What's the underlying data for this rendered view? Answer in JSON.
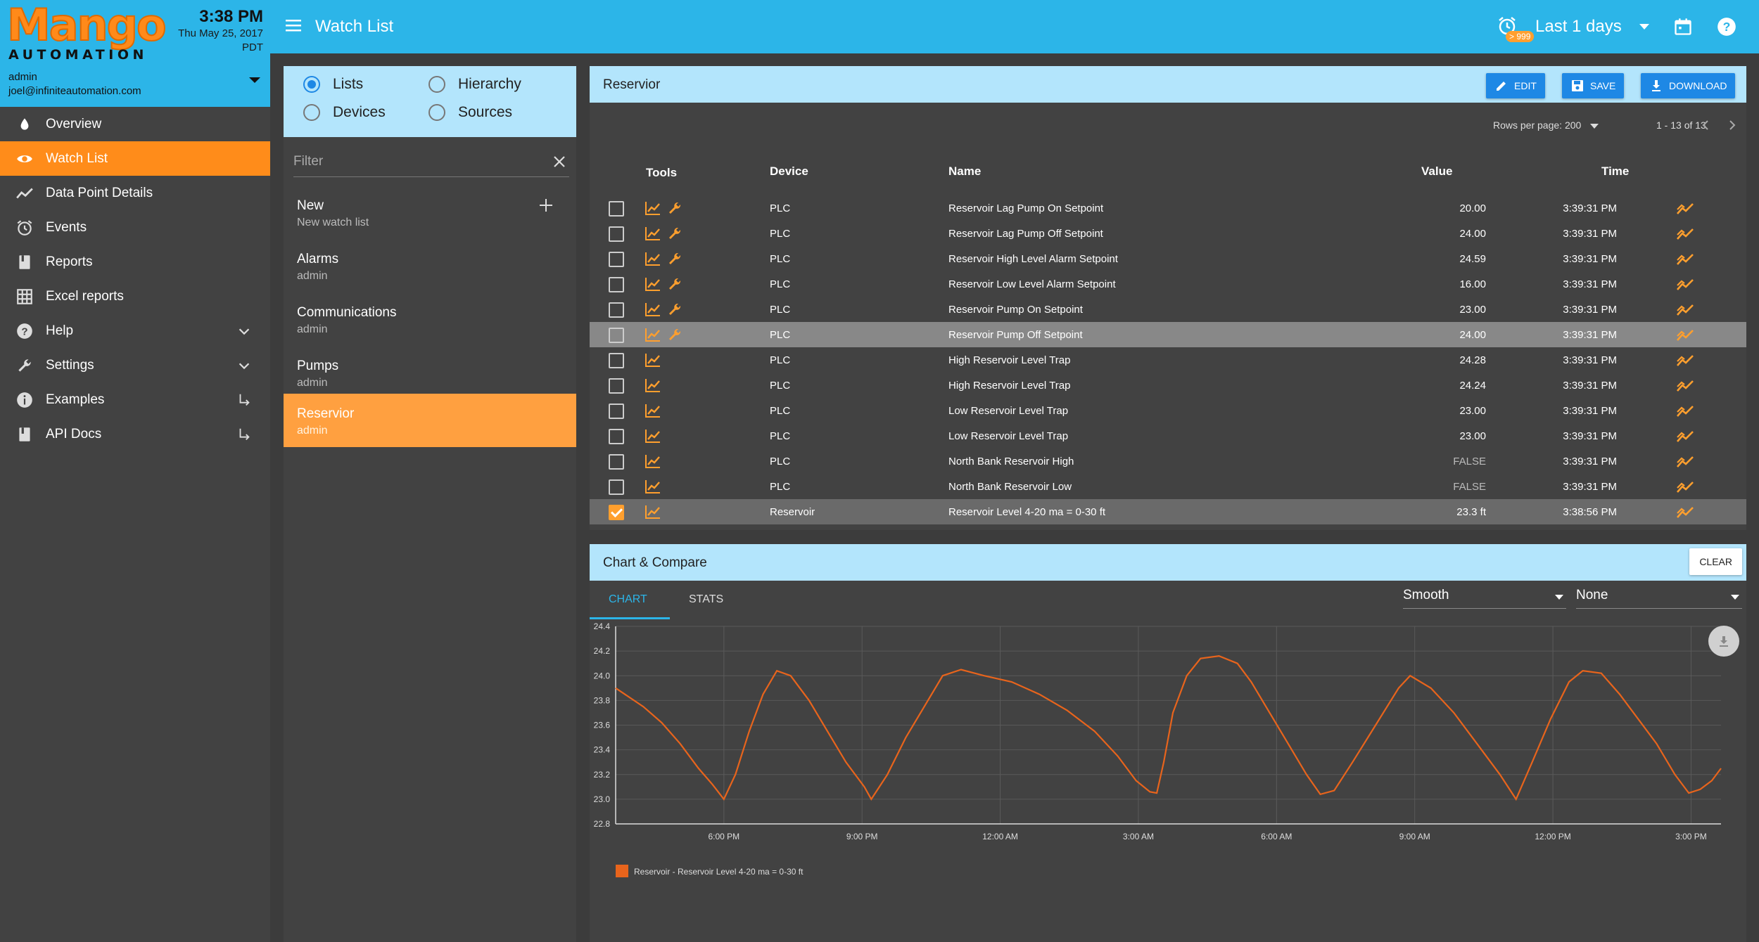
{
  "brand": {
    "name_top": "Mango",
    "name_bottom": "AUTOMATION"
  },
  "clock": {
    "time": "3:38 PM",
    "date": "Thu May 25, 2017",
    "tz": "PDT"
  },
  "user": {
    "name": "admin",
    "email": "joel@infiniteautomation.com"
  },
  "nav": [
    {
      "label": "Overview",
      "icon": "drop-icon"
    },
    {
      "label": "Watch List",
      "icon": "eye-icon",
      "active": true
    },
    {
      "label": "Data Point Details",
      "icon": "trend-icon"
    },
    {
      "label": "Events",
      "icon": "alarm-clock-icon"
    },
    {
      "label": "Reports",
      "icon": "book-icon"
    },
    {
      "label": "Excel reports",
      "icon": "grid-icon"
    },
    {
      "label": "Help",
      "icon": "help-icon",
      "trail": "chevron"
    },
    {
      "label": "Settings",
      "icon": "wrench-icon",
      "trail": "chevron"
    },
    {
      "label": "Examples",
      "icon": "info-icon",
      "trail": "arrow"
    },
    {
      "label": "API Docs",
      "icon": "book-icon",
      "trail": "arrow"
    }
  ],
  "topbar": {
    "title": "Watch List",
    "alarm_badge": "> 999",
    "range": "Last 1 days"
  },
  "lists_panel": {
    "radios": {
      "lists": "Lists",
      "hierarchy": "Hierarchy",
      "devices": "Devices",
      "sources": "Sources"
    },
    "filter_placeholder": "Filter",
    "items": [
      {
        "name": "New",
        "sub": "New watch list"
      },
      {
        "name": "Alarms",
        "sub": "admin"
      },
      {
        "name": "Communications",
        "sub": "admin"
      },
      {
        "name": "Pumps",
        "sub": "admin"
      },
      {
        "name": "Reservior",
        "sub": "admin",
        "active": true
      }
    ]
  },
  "watchlist": {
    "title": "Reservior",
    "buttons": {
      "edit": "EDIT",
      "save": "SAVE",
      "download": "DOWNLOAD"
    },
    "pager": {
      "rows_per_page": "Rows per page: 200",
      "range": "1 - 13 of 13"
    },
    "columns": {
      "tools": "Tools",
      "device": "Device",
      "name": "Name",
      "value": "Value",
      "time": "Time"
    },
    "rows": [
      {
        "device": "PLC",
        "name": "Reservoir Lag Pump On Setpoint",
        "value": "20.00",
        "time": "3:39:31 PM",
        "wrench": true
      },
      {
        "device": "PLC",
        "name": "Reservoir Lag Pump Off Setpoint",
        "value": "24.00",
        "time": "3:39:31 PM",
        "wrench": true
      },
      {
        "device": "PLC",
        "name": "Reservoir High Level Alarm Setpoint",
        "value": "24.59",
        "time": "3:39:31 PM",
        "wrench": true
      },
      {
        "device": "PLC",
        "name": "Reservoir Low Level Alarm Setpoint",
        "value": "16.00",
        "time": "3:39:31 PM",
        "wrench": true
      },
      {
        "device": "PLC",
        "name": "Reservoir Pump On Setpoint",
        "value": "23.00",
        "time": "3:39:31 PM",
        "wrench": true
      },
      {
        "device": "PLC",
        "name": "Reservoir Pump Off Setpoint",
        "value": "24.00",
        "time": "3:39:31 PM",
        "wrench": true,
        "highlight": true
      },
      {
        "device": "PLC",
        "name": "High Reservoir Level Trap",
        "value": "24.28",
        "time": "3:39:31 PM"
      },
      {
        "device": "PLC",
        "name": "High Reservoir Level Trap",
        "value": "24.24",
        "time": "3:39:31 PM"
      },
      {
        "device": "PLC",
        "name": "Low Reservoir Level Trap",
        "value": "23.00",
        "time": "3:39:31 PM"
      },
      {
        "device": "PLC",
        "name": "Low Reservoir Level Trap",
        "value": "23.00",
        "time": "3:39:31 PM"
      },
      {
        "device": "PLC",
        "name": "North Bank Reservoir High",
        "value": "FALSE",
        "time": "3:39:31 PM",
        "bool": true
      },
      {
        "device": "PLC",
        "name": "North Bank Reservoir Low",
        "value": "FALSE",
        "time": "3:39:31 PM",
        "bool": true
      },
      {
        "device": "Reservoir",
        "name": "Reservoir Level 4-20 ma = 0-30 ft",
        "value": "23.3 ft",
        "time": "3:38:56 PM",
        "checked": true,
        "selected": true
      }
    ]
  },
  "chart_panel": {
    "title": "Chart & Compare",
    "clear_label": "CLEAR",
    "tabs": {
      "chart": "CHART",
      "stats": "STATS"
    },
    "rollup": "Smooth",
    "rollup2": "None"
  },
  "colors": {
    "accent": "#ff8c1a",
    "primary": "#2cb5e8",
    "series": "#e8641c"
  },
  "chart_data": {
    "type": "line",
    "title": "",
    "xlabel": "",
    "ylabel": "",
    "ylim": [
      22.8,
      24.4
    ],
    "yticks": [
      "22.8",
      "23.0",
      "23.2",
      "23.4",
      "23.6",
      "23.8",
      "24.0",
      "24.2",
      "24.4"
    ],
    "x_tick_labels": [
      "6:00 PM",
      "9:00 PM",
      "12:00 AM",
      "3:00 AM",
      "6:00 AM",
      "9:00 AM",
      "12:00 PM",
      "3:00 PM"
    ],
    "x_unit": "hours since 3:39 PM (May 24)",
    "xlim": [
      0,
      24
    ],
    "x_tick_positions": [
      2.35,
      5.35,
      8.35,
      11.35,
      14.35,
      17.35,
      20.35,
      23.35
    ],
    "grid": true,
    "series": [
      {
        "name": "Reservoir - Reservoir Level 4-20 ma = 0-30 ft",
        "points": [
          [
            0.0,
            23.9
          ],
          [
            0.6,
            23.75
          ],
          [
            1.0,
            23.62
          ],
          [
            1.4,
            23.45
          ],
          [
            1.8,
            23.25
          ],
          [
            2.1,
            23.12
          ],
          [
            2.35,
            23.0
          ],
          [
            2.6,
            23.2
          ],
          [
            2.9,
            23.55
          ],
          [
            3.2,
            23.85
          ],
          [
            3.5,
            24.04
          ],
          [
            3.8,
            24.0
          ],
          [
            4.2,
            23.8
          ],
          [
            4.6,
            23.55
          ],
          [
            5.0,
            23.3
          ],
          [
            5.4,
            23.1
          ],
          [
            5.55,
            23.0
          ],
          [
            5.9,
            23.2
          ],
          [
            6.3,
            23.5
          ],
          [
            6.7,
            23.75
          ],
          [
            7.1,
            24.0
          ],
          [
            7.5,
            24.05
          ],
          [
            8.0,
            24.0
          ],
          [
            8.6,
            23.95
          ],
          [
            9.2,
            23.85
          ],
          [
            9.8,
            23.72
          ],
          [
            10.4,
            23.55
          ],
          [
            10.9,
            23.35
          ],
          [
            11.3,
            23.15
          ],
          [
            11.6,
            23.06
          ],
          [
            11.75,
            23.05
          ],
          [
            11.9,
            23.3
          ],
          [
            12.1,
            23.7
          ],
          [
            12.4,
            24.0
          ],
          [
            12.7,
            24.14
          ],
          [
            13.1,
            24.16
          ],
          [
            13.5,
            24.1
          ],
          [
            13.8,
            23.95
          ],
          [
            14.2,
            23.7
          ],
          [
            14.6,
            23.45
          ],
          [
            15.0,
            23.2
          ],
          [
            15.3,
            23.04
          ],
          [
            15.6,
            23.07
          ],
          [
            16.0,
            23.3
          ],
          [
            16.5,
            23.6
          ],
          [
            17.0,
            23.9
          ],
          [
            17.25,
            24.0
          ],
          [
            17.7,
            23.9
          ],
          [
            18.2,
            23.7
          ],
          [
            18.7,
            23.45
          ],
          [
            19.2,
            23.2
          ],
          [
            19.55,
            23.0
          ],
          [
            19.9,
            23.3
          ],
          [
            20.3,
            23.65
          ],
          [
            20.7,
            23.95
          ],
          [
            21.0,
            24.04
          ],
          [
            21.4,
            24.02
          ],
          [
            21.8,
            23.85
          ],
          [
            22.2,
            23.65
          ],
          [
            22.6,
            23.45
          ],
          [
            23.0,
            23.2
          ],
          [
            23.3,
            23.05
          ],
          [
            23.55,
            23.08
          ],
          [
            23.8,
            23.15
          ],
          [
            24.0,
            23.25
          ]
        ]
      }
    ]
  }
}
